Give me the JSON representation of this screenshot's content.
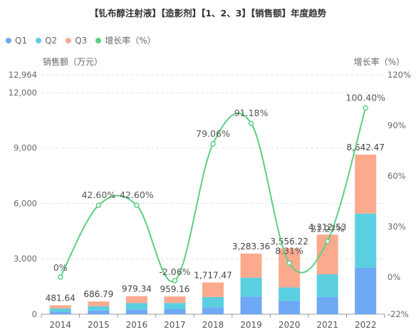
{
  "title": "【钆布醇注射液】【造影剂】【1、2、3】【销售额】年度趋势",
  "legend": [
    {
      "name": "Q1",
      "color": "#6fa8f5"
    },
    {
      "name": "Q2",
      "color": "#5bcfe0"
    },
    {
      "name": "Q3",
      "color": "#fbaa8e"
    },
    {
      "name": "增长率（%）",
      "color": "#5ccf82"
    }
  ],
  "chart_data": {
    "type": "bar",
    "categories": [
      "2014",
      "2015",
      "2016",
      "2017",
      "2018",
      "2019",
      "2020",
      "2021",
      "2022"
    ],
    "series": [
      {
        "name": "Q1",
        "type": "bar",
        "stack": "total",
        "color": "#6fa8f5",
        "values": [
          130,
          200,
          240,
          270,
          370,
          950,
          720,
          930,
          2520
        ]
      },
      {
        "name": "Q2",
        "type": "bar",
        "stack": "total",
        "color": "#5bcfe0",
        "values": [
          190,
          230,
          360,
          340,
          560,
          1030,
          730,
          1230,
          2930
        ]
      },
      {
        "name": "Q3",
        "type": "bar",
        "stack": "total",
        "color": "#fbaa8e",
        "values": [
          161.64,
          256.79,
          379.34,
          349.16,
          787.47,
          1303.36,
          2106.22,
          2152.53,
          3192.47
        ]
      },
      {
        "name": "增长率（%）",
        "type": "line",
        "axis": "right",
        "color": "#5ccf82",
        "values": [
          0,
          42.6,
          42.6,
          -2.06,
          79.06,
          91.18,
          8.31,
          21.27,
          100.4
        ]
      }
    ],
    "totals": [
      481.64,
      686.79,
      979.34,
      959.16,
      1717.47,
      3283.36,
      3556.22,
      4312.53,
      8642.47
    ],
    "total_labels": [
      "481.64",
      "686.79",
      "979.34",
      "959.16",
      "1,717.47",
      "3,283.36",
      "3,556.22",
      "4,312.53",
      "8,642.47"
    ],
    "growth_labels": [
      "0%",
      "42.60%",
      "42.60%",
      "-2.06%",
      "79.06%",
      "91.18%",
      "8.31%",
      "21.27%",
      "100.40%"
    ],
    "ylabel_left": "销售额（万元）",
    "ylabel_right": "增长率（%）",
    "ylim_left": [
      0,
      12964
    ],
    "ylim_right": [
      -22,
      120
    ],
    "yticks_left": [
      0,
      3000,
      6000,
      9000,
      12000,
      12964
    ],
    "yticks_left_labels": [
      "0",
      "3,000",
      "6,000",
      "9,000",
      "12,000",
      "12,964"
    ],
    "yticks_right": [
      -22,
      0,
      30,
      60,
      90,
      120
    ],
    "yticks_right_labels": [
      "-22%",
      "0%",
      "30%",
      "60%",
      "90%",
      "120%"
    ],
    "grid": true,
    "legend_position": "top-left"
  }
}
